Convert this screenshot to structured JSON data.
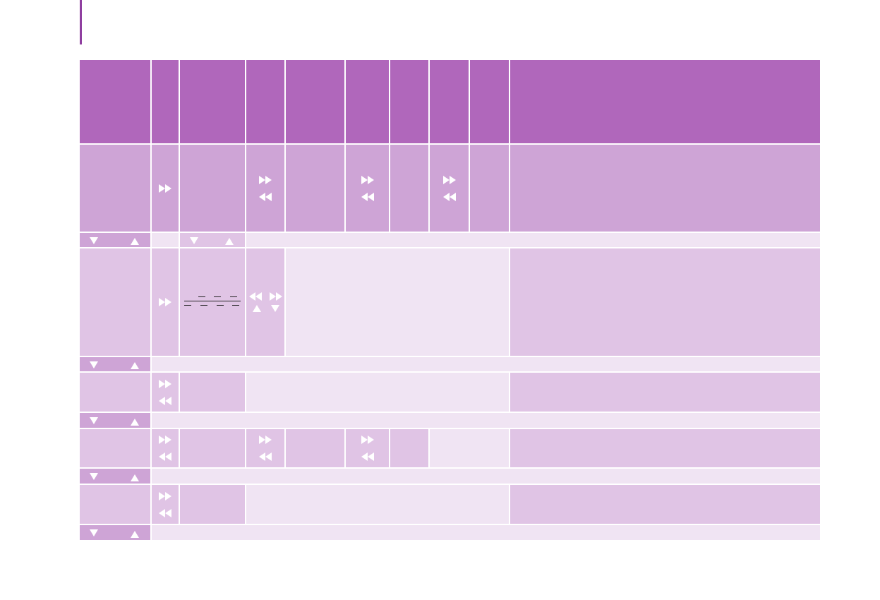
{
  "colors": {
    "accent_bar": "#8f3fa0",
    "header": "#b067bb",
    "medium": "#cea4d6",
    "light": "#e0c4e5",
    "lighter": "#f0e4f3",
    "icon": "#ffffff"
  },
  "icons": [
    "fast-forward-icon",
    "rewind-icon",
    "triangle-down-icon",
    "triangle-up-icon",
    "dashed-lines-icon"
  ]
}
